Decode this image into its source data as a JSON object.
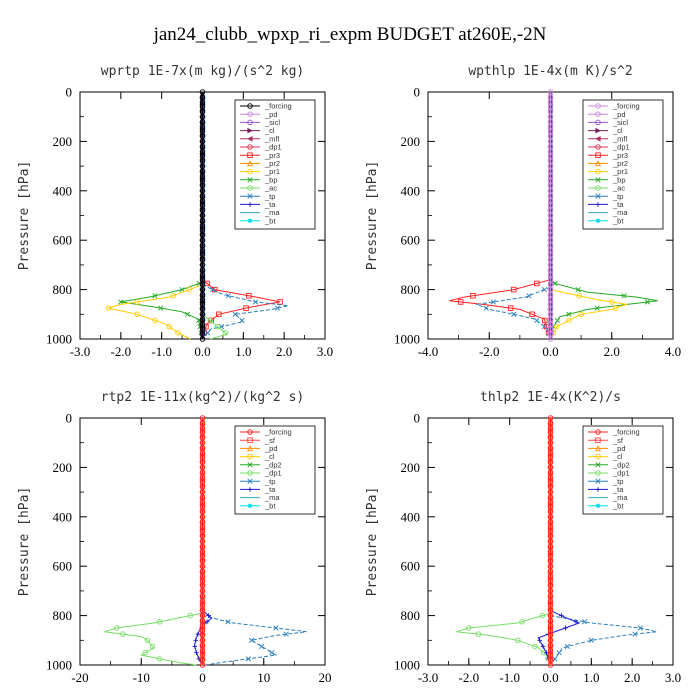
{
  "figure": {
    "title": "jan24_clubb_wpxp_ri_expm  BUDGET at260E,-2N"
  },
  "chart_data": [
    {
      "type": "line",
      "title": "wprtp  1E-7x(m kg)/(s^2 kg)",
      "ylabel": "Pressure [hPa]",
      "xlabel": "",
      "xlim": [
        -3.0,
        3.0
      ],
      "ylim": [
        1000,
        0
      ],
      "xticks": [
        "-3.0",
        "-2.0",
        "-1.0",
        "0.0",
        "1.0",
        "2.0",
        "3.0"
      ],
      "yticks": [
        "0",
        "200",
        "400",
        "600",
        "800",
        "1000"
      ],
      "legend_position": "top-right",
      "series": [
        {
          "name": "_forcing",
          "color": "#000000",
          "marker": "o"
        },
        {
          "name": "_pd",
          "color": "#cc88dd",
          "marker": "o"
        },
        {
          "name": "_sicl",
          "color": "#9955cc",
          "marker": "o"
        },
        {
          "name": "_cl",
          "color": "#7a1f5a",
          "marker": ">"
        },
        {
          "name": "_mfl",
          "color": "#b0305a",
          "marker": "<"
        },
        {
          "name": "_dp1",
          "color": "#dd3355",
          "marker": "o"
        },
        {
          "name": "_pr3",
          "color": "#ff2020",
          "marker": "s"
        },
        {
          "name": "_pr2",
          "color": "#ff8c00",
          "marker": "^"
        },
        {
          "name": "_pr1",
          "color": "#ffcc00",
          "marker": "o"
        },
        {
          "name": "_bp",
          "color": "#22aa22",
          "marker": "x"
        },
        {
          "name": "_ac",
          "color": "#77dd66",
          "marker": "o"
        },
        {
          "name": "_tp",
          "color": "#2a7fc0",
          "marker": "x"
        },
        {
          "name": "_ta",
          "color": "#1a1acc",
          "marker": "+"
        },
        {
          "name": "_ma",
          "color": "#33aacc",
          "marker": "-"
        },
        {
          "name": "_bt",
          "color": "#00ddee",
          "marker": "*"
        }
      ],
      "profiles": [
        {
          "name": "_pr3",
          "p": [
            760,
            800,
            830,
            850,
            870,
            900,
            940,
            1000
          ],
          "v": [
            0.0,
            0.3,
            1.3,
            1.9,
            1.2,
            0.4,
            0.1,
            0.0
          ]
        },
        {
          "name": "_tp",
          "p": [
            780,
            820,
            850,
            865,
            880,
            900,
            930,
            960,
            1000
          ],
          "v": [
            0.0,
            0.5,
            1.3,
            2.1,
            1.7,
            0.8,
            1.0,
            0.2,
            0.0
          ]
        },
        {
          "name": "_bp",
          "p": [
            770,
            800,
            830,
            850,
            870,
            890,
            920,
            1000
          ],
          "v": [
            0.0,
            -0.5,
            -1.3,
            -2.0,
            -1.2,
            -0.5,
            -0.1,
            0.0
          ]
        },
        {
          "name": "_pr1",
          "p": [
            780,
            830,
            860,
            875,
            900,
            940,
            975,
            1000
          ],
          "v": [
            0.0,
            -0.8,
            -2.0,
            -2.3,
            -1.6,
            -0.9,
            -0.6,
            -0.3
          ]
        },
        {
          "name": "_ac",
          "p": [
            900,
            940,
            980,
            1000
          ],
          "v": [
            0.0,
            0.3,
            0.6,
            0.2
          ]
        },
        {
          "name": "_forcing",
          "p": [
            0,
            1000
          ],
          "v": [
            0.0,
            0.0
          ]
        }
      ]
    },
    {
      "type": "line",
      "title": "wpthlp  1E-4x(m K)/s^2",
      "ylabel": "Pressure [hPa]",
      "xlabel": "",
      "xlim": [
        -4.0,
        4.0
      ],
      "ylim": [
        1000,
        0
      ],
      "xticks": [
        "-4.0",
        "-2.0",
        "0.0",
        "2.0",
        "4.0"
      ],
      "yticks": [
        "0",
        "200",
        "400",
        "600",
        "800",
        "1000"
      ],
      "legend_position": "top-right",
      "series": [
        {
          "name": "_forcing",
          "color": "#cc88dd",
          "marker": "o"
        },
        {
          "name": "_pd",
          "color": "#cc88dd",
          "marker": "o"
        },
        {
          "name": "_sicl",
          "color": "#9955cc",
          "marker": "o"
        },
        {
          "name": "_cl",
          "color": "#7a1f5a",
          "marker": ">"
        },
        {
          "name": "_mfl",
          "color": "#b0305a",
          "marker": "<"
        },
        {
          "name": "_dp1",
          "color": "#dd3355",
          "marker": "o"
        },
        {
          "name": "_pr3",
          "color": "#ff2020",
          "marker": "s"
        },
        {
          "name": "_pr2",
          "color": "#ff8c00",
          "marker": "^"
        },
        {
          "name": "_pr1",
          "color": "#ffcc00",
          "marker": "o"
        },
        {
          "name": "_bp",
          "color": "#22aa22",
          "marker": "x"
        },
        {
          "name": "_ac",
          "color": "#77dd66",
          "marker": "o"
        },
        {
          "name": "_tp",
          "color": "#2a7fc0",
          "marker": "x"
        },
        {
          "name": "_ta",
          "color": "#1a1acc",
          "marker": "+"
        },
        {
          "name": "_ma",
          "color": "#33aacc",
          "marker": "-"
        },
        {
          "name": "_bt",
          "color": "#00ddee",
          "marker": "*"
        }
      ],
      "profiles": [
        {
          "name": "_bp",
          "p": [
            770,
            810,
            830,
            845,
            860,
            880,
            910,
            950,
            1000
          ],
          "v": [
            0.0,
            1.2,
            2.8,
            3.5,
            2.5,
            1.2,
            0.3,
            0.1,
            0.0
          ]
        },
        {
          "name": "_pr1",
          "p": [
            800,
            840,
            860,
            880,
            900,
            950,
            1000
          ],
          "v": [
            0.0,
            1.5,
            2.5,
            2.0,
            1.0,
            0.2,
            0.0
          ]
        },
        {
          "name": "_pr3",
          "p": [
            760,
            800,
            830,
            845,
            860,
            880,
            920,
            1000
          ],
          "v": [
            0.0,
            -1.2,
            -2.8,
            -3.3,
            -2.2,
            -1.0,
            -0.2,
            0.0
          ]
        },
        {
          "name": "_tp",
          "p": [
            790,
            830,
            860,
            880,
            900,
            920,
            960,
            1000
          ],
          "v": [
            0.0,
            -0.8,
            -2.4,
            -2.0,
            -1.2,
            -0.5,
            -0.1,
            0.0
          ]
        },
        {
          "name": "_forcing",
          "p": [
            0,
            1000
          ],
          "v": [
            0.0,
            0.0
          ]
        }
      ]
    },
    {
      "type": "line",
      "title": "rtp2  1E-11x(kg^2)/(kg^2 s)",
      "ylabel": "Pressure [hPa]",
      "xlabel": "",
      "xlim": [
        -20,
        20
      ],
      "ylim": [
        1000,
        0
      ],
      "xticks": [
        "-20",
        "-10",
        "0",
        "10",
        "20"
      ],
      "yticks": [
        "0",
        "200",
        "400",
        "600",
        "800",
        "1000"
      ],
      "legend_position": "top-right",
      "series": [
        {
          "name": "_forcing",
          "color": "#ff2020",
          "marker": "o"
        },
        {
          "name": "_sf",
          "color": "#ff4444",
          "marker": "s"
        },
        {
          "name": "_pd",
          "color": "#ff8c00",
          "marker": "^"
        },
        {
          "name": "_cl",
          "color": "#ffcc00",
          "marker": "o"
        },
        {
          "name": "_dp2",
          "color": "#22aa22",
          "marker": "x"
        },
        {
          "name": "_dp1",
          "color": "#77dd66",
          "marker": "o"
        },
        {
          "name": "_tp",
          "color": "#2a7fc0",
          "marker": "x"
        },
        {
          "name": "_ta",
          "color": "#1a1acc",
          "marker": "+"
        },
        {
          "name": "_ma",
          "color": "#33aacc",
          "marker": "-"
        },
        {
          "name": "_bt",
          "color": "#00ddee",
          "marker": "*"
        }
      ],
      "profiles": [
        {
          "name": "_dp1",
          "p": [
            790,
            830,
            850,
            865,
            885,
            900,
            930,
            960,
            990,
            1000
          ],
          "v": [
            0.0,
            -8.0,
            -14.0,
            -16.0,
            -10.0,
            -9.0,
            -8.0,
            -10.0,
            -4.0,
            -1.0
          ]
        },
        {
          "name": "_tp",
          "p": [
            800,
            830,
            850,
            865,
            880,
            900,
            930,
            960,
            990,
            1000
          ],
          "v": [
            0.0,
            5.0,
            12.0,
            17.0,
            12.0,
            8.0,
            10.0,
            12.0,
            3.0,
            0.5
          ]
        },
        {
          "name": "_ta",
          "p": [
            780,
            810,
            830,
            860,
            890,
            920,
            950,
            980,
            1000
          ],
          "v": [
            0.0,
            1.5,
            0.5,
            -0.5,
            -1.0,
            -1.3,
            -1.0,
            -0.5,
            0.0
          ]
        },
        {
          "name": "_forcing",
          "p": [
            0,
            1000
          ],
          "v": [
            0.0,
            0.0
          ]
        }
      ]
    },
    {
      "type": "line",
      "title": "thlp2  1E-4x(K^2)/s",
      "ylabel": "Pressure [hPa]",
      "xlabel": "",
      "xlim": [
        -3.0,
        3.0
      ],
      "ylim": [
        1000,
        0
      ],
      "xticks": [
        "-3.0",
        "-2.0",
        "-1.0",
        "0.0",
        "1.0",
        "2.0",
        "3.0"
      ],
      "yticks": [
        "0",
        "200",
        "400",
        "600",
        "800",
        "1000"
      ],
      "legend_position": "top-right",
      "series": [
        {
          "name": "_forcing",
          "color": "#ff2020",
          "marker": "o"
        },
        {
          "name": "_sf",
          "color": "#ff4444",
          "marker": "s"
        },
        {
          "name": "_pd",
          "color": "#ff8c00",
          "marker": "^"
        },
        {
          "name": "_cl",
          "color": "#ffcc00",
          "marker": "o"
        },
        {
          "name": "_dp2",
          "color": "#22aa22",
          "marker": "x"
        },
        {
          "name": "_dp1",
          "color": "#77dd66",
          "marker": "o"
        },
        {
          "name": "_tp",
          "color": "#2a7fc0",
          "marker": "x"
        },
        {
          "name": "_ta",
          "color": "#1a1acc",
          "marker": "+"
        },
        {
          "name": "_ma",
          "color": "#33aacc",
          "marker": "-"
        },
        {
          "name": "_bt",
          "color": "#00ddee",
          "marker": "*"
        }
      ],
      "profiles": [
        {
          "name": "_dp1",
          "p": [
            790,
            830,
            850,
            865,
            880,
            900,
            930,
            960,
            1000
          ],
          "v": [
            0.0,
            -0.8,
            -2.0,
            -2.3,
            -1.5,
            -0.8,
            -0.3,
            -0.1,
            0.0
          ]
        },
        {
          "name": "_tp",
          "p": [
            800,
            830,
            850,
            865,
            880,
            900,
            930,
            1000
          ],
          "v": [
            0.0,
            1.0,
            2.2,
            2.6,
            1.8,
            1.0,
            0.3,
            0.0
          ]
        },
        {
          "name": "_ta",
          "p": [
            780,
            810,
            830,
            860,
            890,
            920,
            950,
            1000
          ],
          "v": [
            0.0,
            0.4,
            0.7,
            0.2,
            -0.3,
            -0.2,
            -0.1,
            0.0
          ]
        },
        {
          "name": "_forcing",
          "p": [
            0,
            1000
          ],
          "v": [
            0.0,
            0.0
          ]
        }
      ]
    }
  ]
}
